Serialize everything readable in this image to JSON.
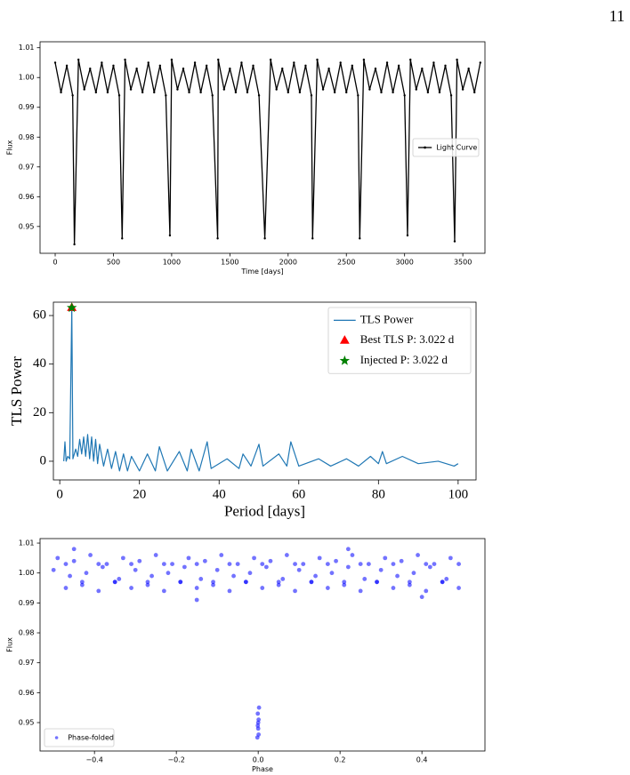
{
  "page_number": "11",
  "chart_data": [
    {
      "type": "line",
      "xlabel": "Time [days]",
      "ylabel": "Flux",
      "xlim": [
        -130,
        3690
      ],
      "ylim": [
        0.941,
        1.012
      ],
      "xticks": [
        0,
        500,
        1000,
        1500,
        2000,
        2500,
        3000,
        3500
      ],
      "yticks": [
        0.95,
        0.96,
        0.97,
        0.98,
        0.99,
        {
          "value": 1,
          "label": "1.00"
        },
        1.01
      ],
      "legend": "center right",
      "series": [
        {
          "name": "Light Curve",
          "color": "#000000",
          "marker": "dot",
          "x": [
            0,
            50,
            100,
            150,
            165,
            200,
            250,
            300,
            350,
            400,
            450,
            500,
            550,
            575,
            600,
            650,
            700,
            750,
            800,
            850,
            900,
            950,
            985,
            1000,
            1050,
            1100,
            1150,
            1200,
            1250,
            1300,
            1350,
            1395,
            1400,
            1450,
            1500,
            1550,
            1600,
            1650,
            1700,
            1750,
            1800,
            1850,
            1900,
            1950,
            2000,
            2050,
            2100,
            2150,
            2200,
            2210,
            2250,
            2300,
            2350,
            2400,
            2450,
            2500,
            2550,
            2600,
            2615,
            2650,
            2700,
            2750,
            2800,
            2850,
            2900,
            2950,
            3000,
            3025,
            3050,
            3100,
            3150,
            3200,
            3250,
            3300,
            3350,
            3400,
            3430,
            3450,
            3500,
            3550,
            3600,
            3650
          ],
          "y": [
            1.005,
            0.995,
            1.004,
            0.994,
            0.944,
            1.006,
            0.996,
            1.003,
            0.995,
            1.005,
            0.995,
            1.004,
            0.994,
            0.946,
            1.006,
            0.996,
            1.003,
            0.995,
            1.005,
            0.995,
            1.004,
            0.994,
            0.947,
            1.006,
            0.996,
            1.003,
            0.995,
            1.005,
            0.995,
            1.004,
            0.994,
            0.946,
            1.006,
            0.996,
            1.003,
            0.995,
            1.005,
            0.995,
            1.004,
            0.994,
            0.946,
            1.006,
            0.996,
            1.003,
            0.995,
            1.005,
            0.995,
            1.004,
            0.994,
            0.946,
            1.006,
            0.996,
            1.003,
            0.995,
            1.005,
            0.995,
            1.004,
            0.994,
            0.946,
            1.006,
            0.996,
            1.003,
            0.995,
            1.005,
            0.995,
            1.004,
            0.994,
            0.947,
            1.006,
            0.996,
            1.003,
            0.995,
            1.005,
            0.995,
            1.004,
            0.994,
            0.945,
            1.006,
            0.996,
            1.003,
            0.995,
            1.005
          ]
        }
      ]
    },
    {
      "type": "line",
      "xlabel": "Period [days]",
      "ylabel": "TLS Power",
      "xlim": [
        -1.6,
        104.5
      ],
      "ylim": [
        -7.7,
        65.5
      ],
      "xticks": [
        0,
        20,
        40,
        60,
        80,
        100
      ],
      "yticks": [
        0,
        20,
        40,
        60
      ],
      "legend": "upper right",
      "series": [
        {
          "name": "TLS Power",
          "color": "#1f77b4",
          "x": [
            1,
            1.3,
            1.6,
            2,
            2.5,
            3.022,
            3.3,
            4,
            4.5,
            5,
            5.5,
            6,
            6.5,
            7,
            7.5,
            8,
            8.5,
            9,
            9.5,
            10,
            11,
            12,
            13,
            14,
            15,
            16,
            17,
            18,
            20,
            22,
            24,
            25,
            27,
            30,
            32,
            33,
            35,
            37,
            38,
            42,
            45,
            46,
            48,
            50,
            51,
            55,
            57,
            58,
            60,
            65,
            68,
            72,
            75,
            78,
            80,
            81,
            82,
            86,
            90,
            95,
            99,
            100
          ],
          "y": [
            0,
            8,
            0,
            2,
            1,
            63.2,
            1,
            5,
            2,
            9,
            3,
            10,
            2,
            11,
            1,
            10,
            0,
            9,
            -1,
            7,
            -2,
            5,
            -3,
            4,
            -4,
            3,
            -4,
            2,
            -4,
            3,
            -4,
            6,
            -4,
            4,
            -4,
            5,
            -4,
            8,
            -3,
            1,
            -3,
            3,
            -2,
            7,
            -2,
            3,
            -2,
            8,
            -2,
            1,
            -2,
            1,
            -2,
            2,
            -1,
            4,
            -1,
            2,
            -1,
            0,
            -2,
            -1
          ]
        },
        {
          "name": "Best TLS P: 3.022 d",
          "color": "red",
          "marker": "triangle",
          "line": false,
          "x": [
            3.022
          ],
          "y": [
            63.2
          ]
        },
        {
          "name": "Injected P: 3.022 d",
          "color": "green",
          "marker": "star",
          "line": false,
          "x": [
            3.022
          ],
          "y": [
            63.2
          ]
        }
      ]
    },
    {
      "type": "scatter",
      "xlabel": "Phase",
      "ylabel": "Flux",
      "xlim": [
        -0.533,
        0.554
      ],
      "ylim": [
        0.9405,
        1.0115
      ],
      "xticks": [
        {
          "value": -0.4,
          "label": "−0.4"
        },
        {
          "value": -0.2,
          "label": "−0.2"
        },
        {
          "value": 0,
          "label": "0.0"
        },
        0.2,
        0.4
      ],
      "yticks": [
        0.95,
        0.96,
        0.97,
        0.98,
        0.99,
        {
          "value": 1,
          "label": "1.00"
        },
        1.01
      ],
      "legend": "lower left",
      "series": [
        {
          "name": "Phase-folded",
          "color": "blue",
          "x": [
            -0.49,
            -0.45,
            -0.41,
            -0.37,
            -0.33,
            -0.29,
            -0.25,
            -0.21,
            -0.17,
            -0.13,
            -0.09,
            -0.05,
            -0.01,
            0.03,
            0.07,
            0.11,
            0.15,
            0.19,
            0.23,
            0.27,
            0.31,
            0.35,
            0.39,
            0.43,
            0.47,
            -0.47,
            -0.43,
            -0.39,
            -0.35,
            -0.31,
            -0.27,
            -0.23,
            -0.19,
            -0.15,
            -0.11,
            -0.07,
            -0.03,
            0.01,
            0.05,
            0.09,
            0.13,
            0.17,
            0.21,
            0.25,
            0.29,
            0.33,
            0.37,
            0.41,
            0.45,
            0.49,
            -0.5,
            -0.46,
            -0.42,
            -0.38,
            -0.34,
            -0.3,
            -0.26,
            -0.22,
            -0.18,
            -0.14,
            -0.1,
            -0.06,
            -0.02,
            0.02,
            0.06,
            0.1,
            0.14,
            0.18,
            0.22,
            0.26,
            0.3,
            0.34,
            0.38,
            0.42,
            0.46,
            -0.47,
            -0.43,
            -0.39,
            -0.35,
            -0.31,
            -0.27,
            -0.23,
            -0.19,
            -0.15,
            -0.11,
            -0.07,
            -0.03,
            0.01,
            0.05,
            0.09,
            0.13,
            0.17,
            0.21,
            0.25,
            0.29,
            0.33,
            0.37,
            0.41,
            0.45,
            0.49,
            -0.002,
            0,
            0.001,
            -0.001,
            0.002,
            0,
            0.001,
            -0.001,
            -0.15,
            -0.45,
            0.22,
            0.4
          ],
          "y": [
            1.005,
            1.004,
            1.006,
            1.003,
            1.005,
            1.004,
            1.006,
            1.003,
            1.005,
            1.004,
            1.006,
            1.003,
            1.005,
            1.004,
            1.006,
            1.003,
            1.005,
            1.004,
            1.006,
            1.003,
            1.005,
            1.004,
            1.006,
            1.003,
            1.005,
            0.995,
            0.996,
            0.994,
            0.997,
            0.995,
            0.996,
            0.994,
            0.997,
            0.995,
            0.996,
            0.994,
            0.997,
            0.995,
            0.996,
            0.994,
            0.997,
            0.995,
            0.996,
            0.994,
            0.997,
            0.995,
            0.996,
            0.994,
            0.997,
            0.995,
            1.001,
            0.999,
            1,
            1.002,
            0.998,
            1.001,
            0.999,
            1,
            1.002,
            0.998,
            1.001,
            0.999,
            1,
            1.002,
            0.998,
            1.001,
            0.999,
            1,
            1.002,
            0.998,
            1.001,
            0.999,
            1,
            1.002,
            0.998,
            1.003,
            0.997,
            1.003,
            0.997,
            1.003,
            0.997,
            1.003,
            0.997,
            1.003,
            0.997,
            1.003,
            0.997,
            1.003,
            0.997,
            1.003,
            0.997,
            1.003,
            0.997,
            1.003,
            0.997,
            1.003,
            0.997,
            1.003,
            0.997,
            1.003,
            0.945,
            0.948,
            0.951,
            0.953,
            0.955,
            0.95,
            0.946,
            0.949,
            0.991,
            1.008,
            1.008,
            0.992
          ]
        }
      ]
    }
  ]
}
